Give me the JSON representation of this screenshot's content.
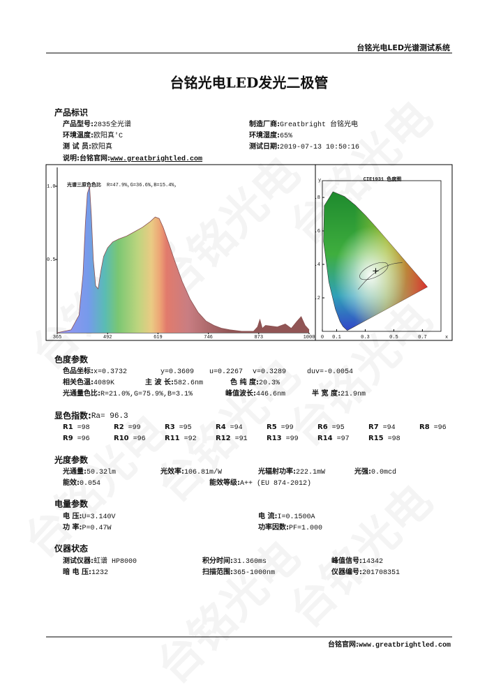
{
  "header": {
    "system": "台铭光电LED光谱测试系统"
  },
  "title": "台铭光电LED发光二极管",
  "watermark": "台铭光电",
  "product": {
    "heading": "产品标识",
    "items": [
      {
        "label": "产品型号:",
        "value": "2835全光谱"
      },
      {
        "label": "制造厂商:",
        "value": "Greatbright 台铭光电"
      },
      {
        "label": "环境温度:",
        "value": "欧阳真'C"
      },
      {
        "label": "环境湿度:",
        "value": "65%"
      },
      {
        "label": "测 试 员:",
        "value": "欧阳真"
      },
      {
        "label": "测试日期:",
        "value": "2019-07-13 10:50:16"
      }
    ],
    "note": {
      "label": "说明:",
      "site_label": "台铭官网:",
      "site": "www.greatbrightled.com"
    }
  },
  "chart_data": [
    {
      "type": "area",
      "title": "光谱三原色色比",
      "subtitle": "R=47.9%,G=36.6%,B=15.4%,",
      "x": [
        365,
        400,
        420,
        430,
        436,
        441,
        446.6,
        451,
        456,
        462,
        468,
        475,
        482,
        492,
        505,
        520,
        540,
        560,
        580,
        600,
        612,
        622,
        632,
        645,
        660,
        680,
        700,
        720,
        740,
        760,
        780,
        800,
        830,
        860,
        870,
        876,
        882,
        890,
        920,
        940,
        955,
        970,
        980,
        990,
        1000
      ],
      "values": [
        0,
        0.02,
        0.12,
        0.4,
        0.75,
        0.95,
        1.0,
        0.8,
        0.5,
        0.32,
        0.3,
        0.42,
        0.52,
        0.58,
        0.62,
        0.64,
        0.66,
        0.69,
        0.72,
        0.76,
        0.79,
        0.78,
        0.72,
        0.62,
        0.5,
        0.35,
        0.23,
        0.14,
        0.08,
        0.05,
        0.03,
        0.02,
        0.01,
        0.01,
        0.04,
        0.09,
        0.03,
        0.05,
        0.04,
        0.06,
        0.03,
        0.08,
        0.11,
        0.05,
        0.02
      ],
      "xlim": [
        365,
        1000
      ],
      "xticks": [
        365,
        492,
        619,
        746,
        873,
        1000
      ],
      "ylim": [
        0,
        1.1
      ],
      "yticks": [
        0.5,
        {
          "value": 1,
          "label": "1.0"
        }
      ]
    },
    {
      "type": "chromaticity",
      "title": "CIE1931 色度图",
      "xlabel": "x",
      "ylabel": "y",
      "xlim": [
        0,
        0.83
      ],
      "xticks": [
        0,
        0.1,
        0.3,
        0.5,
        0.7
      ],
      "ylim": [
        0,
        0.9
      ],
      "yticks": [
        {
          "value": 0.8,
          "label": ".8"
        },
        {
          "value": 0.6,
          "label": ".6"
        },
        {
          "value": 0.4,
          "label": ".4"
        },
        {
          "value": 0.2,
          "label": ".2"
        }
      ]
    }
  ],
  "chroma": {
    "heading": "色度参数",
    "items": [
      {
        "label": "色品坐标:",
        "value": "x=0.3732"
      },
      {
        "value": "y=0.3609"
      },
      {
        "value": "u=0.2267"
      },
      {
        "value": "v=0.3289"
      },
      {
        "value": "duv=-0.0054"
      },
      {
        "label": "相关色温:",
        "value": "4089K"
      },
      {
        "label": "主 波 长:",
        "value": "582.6nm"
      },
      {
        "label": "色 纯 度:",
        "value": "20.3%"
      },
      {
        "label": "光通量色比:",
        "value": "R=21.0%,G=75.9%,B=3.1%"
      },
      {
        "label": "峰值波长:",
        "value": "446.6nm"
      },
      {
        "label": "半 宽 度:",
        "value": "21.9nm"
      }
    ]
  },
  "render": {
    "index": {
      "label": "显色指数:",
      "value": "Ra= 96.3"
    },
    "items": [
      {
        "label": "R1",
        "value": "=98"
      },
      {
        "label": "R2",
        "value": "=99"
      },
      {
        "label": "R3",
        "value": "=95"
      },
      {
        "label": "R4",
        "value": "=94"
      },
      {
        "label": "R5",
        "value": "=99"
      },
      {
        "label": "R6",
        "value": "=95"
      },
      {
        "label": "R7",
        "value": "=94"
      },
      {
        "label": "R8",
        "value": "=96"
      },
      {
        "label": "R9",
        "value": "=96"
      },
      {
        "label": "R10",
        "value": "=96"
      },
      {
        "label": "R11",
        "value": "=92"
      },
      {
        "label": "R12",
        "value": "=91"
      },
      {
        "label": "R13",
        "value": "=99"
      },
      {
        "label": "R14",
        "value": "=97"
      },
      {
        "label": "R15",
        "value": "=98"
      }
    ]
  },
  "photometric": {
    "heading": "光度参数",
    "items": [
      {
        "label": "光通量:",
        "value": "50.32lm"
      },
      {
        "label": "光效率:",
        "value": "106.81m/W"
      },
      {
        "label": "光辐射功率:",
        "value": "222.1mW"
      },
      {
        "label": "光强:",
        "value": "0.0mcd"
      },
      {
        "label": "能效:",
        "value": "0.054"
      },
      {
        "label": "能效等级:",
        "value": "A++ (EU 874-2012)"
      }
    ]
  },
  "electrical": {
    "heading": "电量参数",
    "items": [
      {
        "label": "电    压:",
        "value": "U=3.140V"
      },
      {
        "label": "电    流:",
        "value": "I=0.1500A"
      },
      {
        "label": "功    率:",
        "value": "P=0.47W"
      },
      {
        "label": "功率因数:",
        "value": "PF=1.000"
      }
    ]
  },
  "instrument": {
    "heading": "仪器状态",
    "items": [
      {
        "label": "测试仪器:",
        "value": "虹谱 HP8000"
      },
      {
        "label": "积分时间:",
        "value": "31.360ms"
      },
      {
        "label": "峰值信号:",
        "value": "14342"
      },
      {
        "label": "暗 电 压:",
        "value": "1232"
      },
      {
        "label": "扫描范围:",
        "value": "365-1000nm"
      },
      {
        "label": "仪器编号:",
        "value": "201708351"
      }
    ]
  },
  "footer": {
    "site_label": "台铭官网:",
    "site": "www.greatbrightled.com"
  }
}
